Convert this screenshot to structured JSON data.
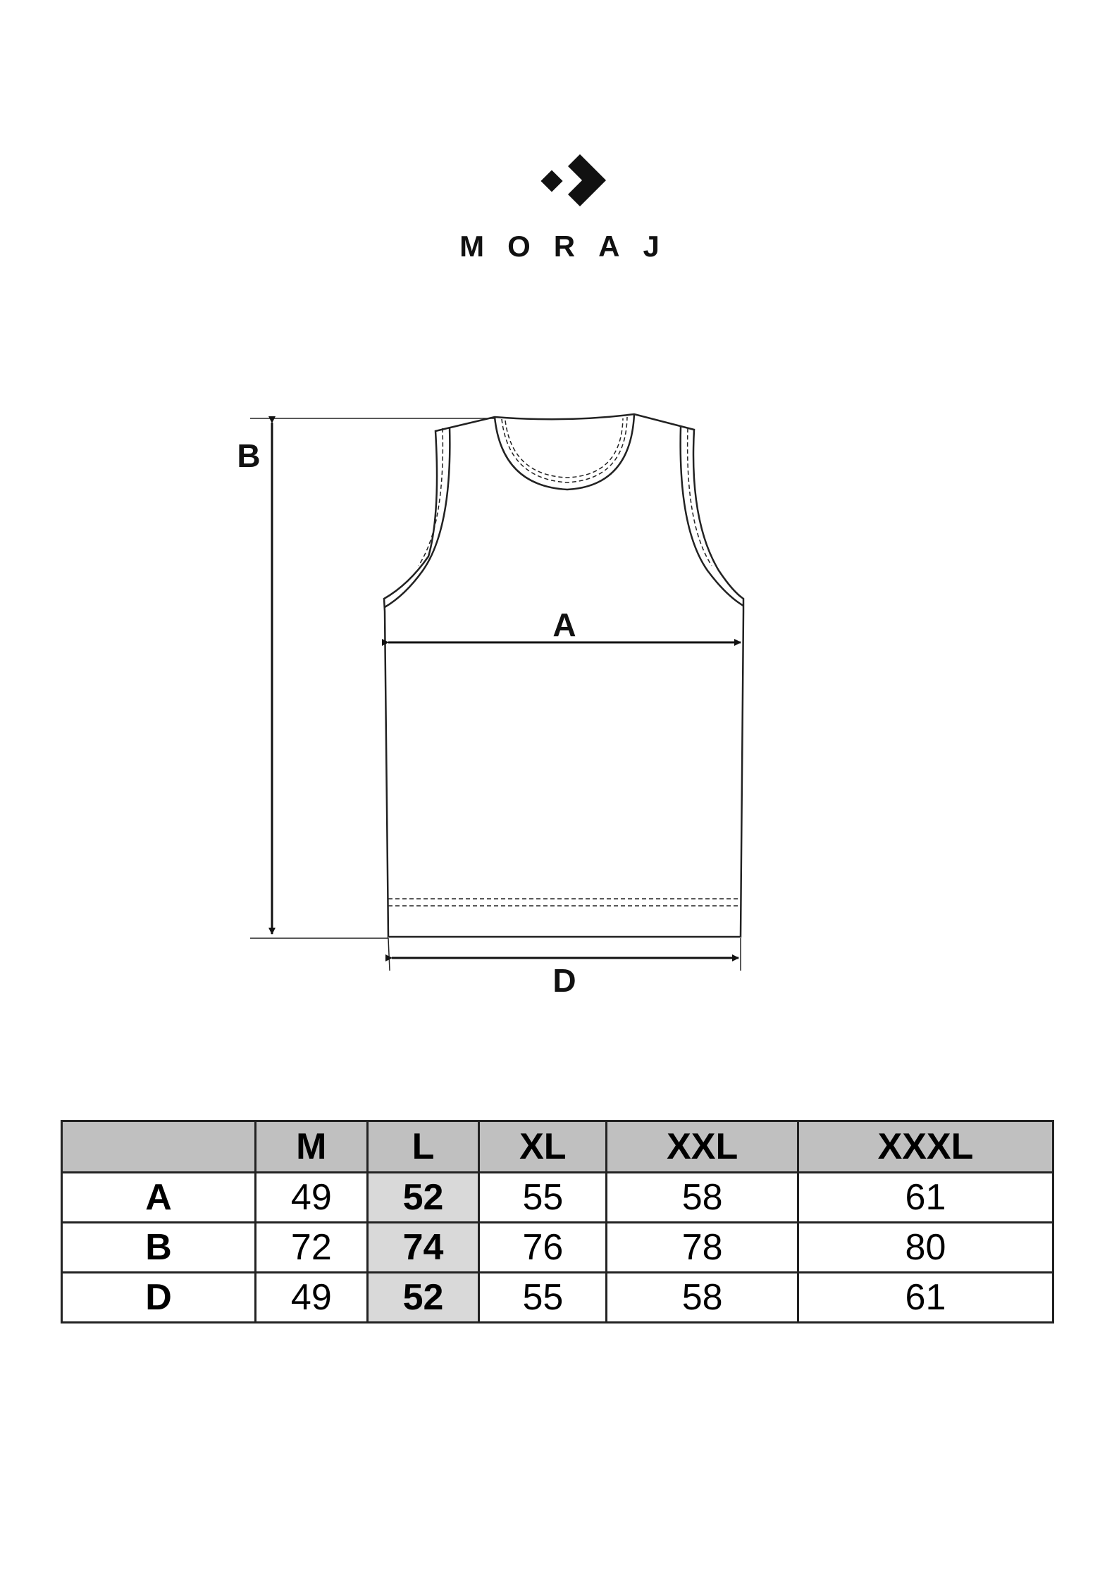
{
  "brand": {
    "name": "MORAJ",
    "logo_icon": "arrow-diamond-logo"
  },
  "diagram": {
    "labels": {
      "a": "A",
      "b": "B",
      "d": "D"
    }
  },
  "size_table": {
    "headers": [
      "",
      "M",
      "L",
      "XL",
      "XXL",
      "XXXL"
    ],
    "highlight_column": "L",
    "header_bg": "#c0c0c0",
    "highlight_bg": "#d9d9d9",
    "rows": [
      {
        "label": "A",
        "values": [
          "49",
          "52",
          "55",
          "58",
          "61"
        ]
      },
      {
        "label": "B",
        "values": [
          "72",
          "74",
          "76",
          "78",
          "80"
        ]
      },
      {
        "label": "D",
        "values": [
          "49",
          "52",
          "55",
          "58",
          "61"
        ]
      }
    ]
  }
}
